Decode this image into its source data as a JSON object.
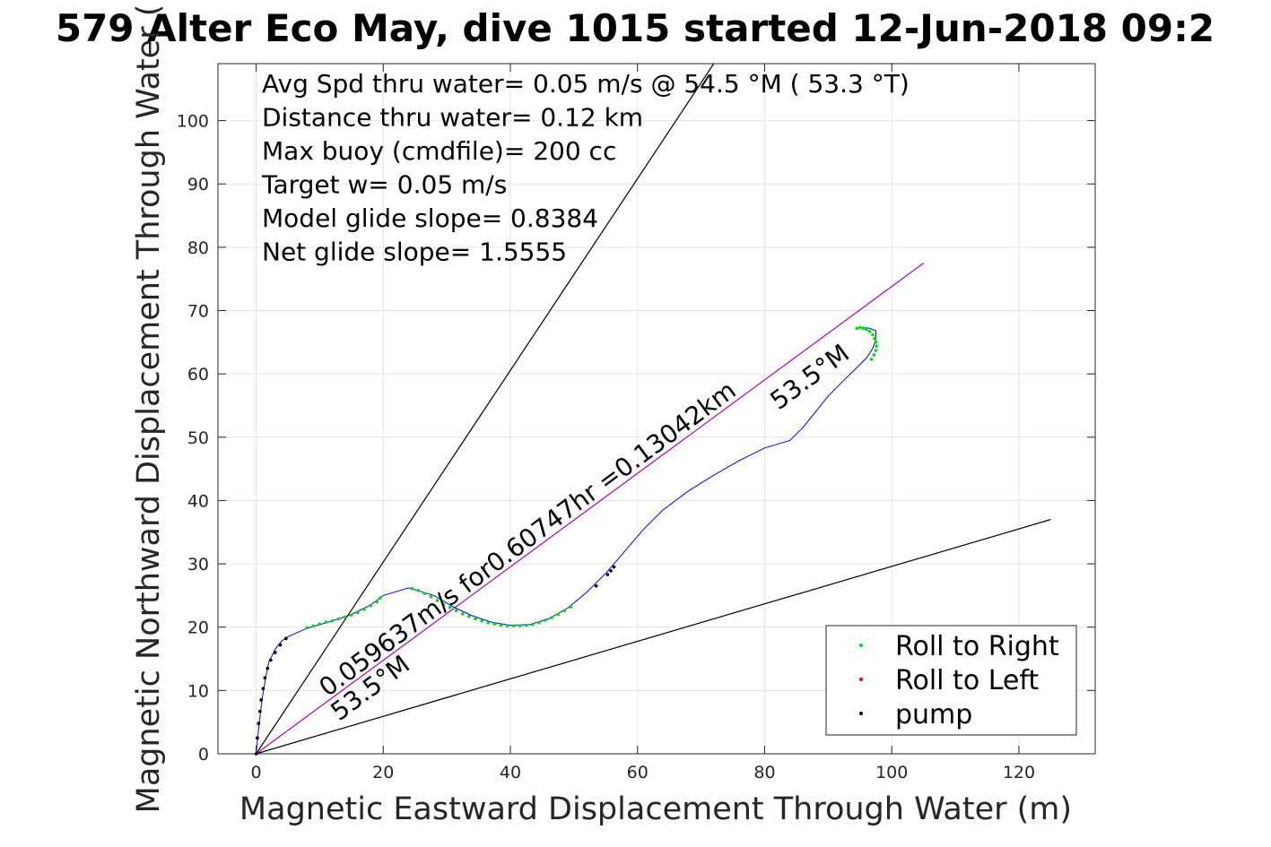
{
  "chart_data": {
    "type": "scatter",
    "title": "579 Alter Eco May, dive 1015 started 12-Jun-2018 09:2",
    "xlabel": "Magnetic Eastward Displacement Through Water (m)",
    "ylabel": "Magnetic Northward Displacement Through Water (",
    "xlim": [
      -6,
      132
    ],
    "ylim": [
      0,
      109
    ],
    "xticks": [
      0,
      20,
      40,
      60,
      80,
      100,
      120
    ],
    "yticks": [
      0,
      10,
      20,
      30,
      40,
      50,
      60,
      70,
      80,
      90,
      100
    ],
    "grid": true,
    "legend_position": "bottom-right",
    "annotations": [
      "Avg Spd thru water=  0.05 m/s @  54.5 °M ( 53.3 °T)",
      "Distance thru water=  0.12 km",
      "Max buoy (cmdfile)= 200 cc",
      "Target w= 0.05 m/s",
      "Model glide slope= 0.8384",
      "Net glide slope= 1.5555"
    ],
    "rotated_labels": {
      "speed": "0.059637m/s for0.60747hr =0.13042km",
      "heading_low": "53.5°M",
      "heading_high": "53.5°M"
    },
    "reference_lines": [
      {
        "from": [
          0,
          0
        ],
        "to": [
          72,
          109
        ],
        "color": "#000000"
      },
      {
        "from": [
          0,
          0
        ],
        "to": [
          125,
          37
        ],
        "color": "#000000"
      },
      {
        "from": [
          0,
          0
        ],
        "to": [
          105,
          77.5
        ],
        "color": "#b000b0"
      }
    ],
    "track": {
      "color": "#0000ff",
      "x": [
        0,
        0.5,
        1,
        1.5,
        2,
        3,
        4,
        5,
        8,
        12,
        15,
        18,
        20,
        24,
        28,
        31,
        34,
        37,
        40,
        43,
        46,
        49,
        52,
        55,
        58,
        61,
        64,
        68,
        72,
        76,
        80,
        84,
        86,
        88,
        90,
        92,
        94,
        96,
        97,
        97.5,
        97.5,
        96.5,
        95.5,
        94.5
      ],
      "y": [
        0,
        5,
        9,
        12,
        14.5,
        16.5,
        17.8,
        18.5,
        19.8,
        21,
        22,
        23.5,
        25,
        26.2,
        25,
        23.2,
        21.8,
        20.8,
        20.3,
        20.4,
        21.3,
        23,
        25.5,
        28.5,
        32,
        35.5,
        38.5,
        41.5,
        44,
        46.3,
        48.3,
        49.5,
        51.5,
        54,
        56.5,
        58.5,
        60.5,
        62.5,
        64,
        65.5,
        66.8,
        67.2,
        67.3,
        67.2
      ]
    },
    "series": [
      {
        "name": "Roll to Right",
        "color": "#00dd00",
        "x": [
          8,
          9,
          10,
          11,
          12,
          13,
          14,
          15,
          16,
          17,
          18,
          19,
          19.5,
          24.5,
          25.5,
          26.5,
          27.5,
          28.5,
          29.5,
          30.5,
          31.5,
          32.5,
          33.5,
          34.5,
          35.5,
          36.5,
          37.5,
          38.5,
          39.5,
          40.5,
          41.5,
          42.5,
          43.5,
          44.5,
          45.5,
          46.5,
          47.5,
          48.5,
          49.5,
          94.5,
          95,
          95.5,
          96,
          96.5,
          97,
          97.3,
          97.5,
          97.6,
          97.5,
          97.2,
          96.8
        ],
        "y": [
          19.9,
          20.2,
          20.5,
          20.8,
          21.0,
          21.3,
          21.6,
          21.9,
          22.3,
          22.8,
          23.4,
          24.0,
          24.6,
          26.1,
          25.8,
          25.3,
          24.8,
          24.2,
          23.6,
          23.1,
          22.6,
          22.1,
          21.7,
          21.3,
          21.0,
          20.7,
          20.5,
          20.3,
          20.2,
          20.2,
          20.2,
          20.3,
          20.4,
          20.7,
          21.1,
          21.5,
          22.0,
          22.6,
          23.2,
          67.2,
          67.3,
          67.2,
          67.0,
          66.7,
          66.2,
          65.6,
          65.0,
          64.4,
          63.7,
          63.0,
          62.3
        ]
      },
      {
        "name": "Roll to Left",
        "color": "#ff0000",
        "x": [
          0,
          0.2,
          0.4,
          0.6,
          0.8,
          1.1,
          1.4,
          1.8,
          2.3,
          3.0,
          3.8,
          4.7
        ],
        "y": [
          0,
          2.5,
          4.8,
          6.7,
          8.5,
          10.3,
          12.0,
          13.5,
          14.8,
          16.0,
          17.2,
          18.2
        ]
      },
      {
        "name": "pump",
        "color": "#000000",
        "x": [
          0,
          0.2,
          0.4,
          0.6,
          0.8,
          1.1,
          1.4,
          1.8,
          2.3,
          3.0,
          3.8,
          4.7,
          53.5,
          55.3,
          55.8,
          56.3
        ],
        "y": [
          0,
          2.5,
          4.8,
          6.7,
          8.5,
          10.3,
          12.0,
          13.5,
          14.8,
          16.0,
          17.2,
          18.2,
          26.5,
          28.3,
          28.9,
          29.5
        ]
      }
    ]
  }
}
